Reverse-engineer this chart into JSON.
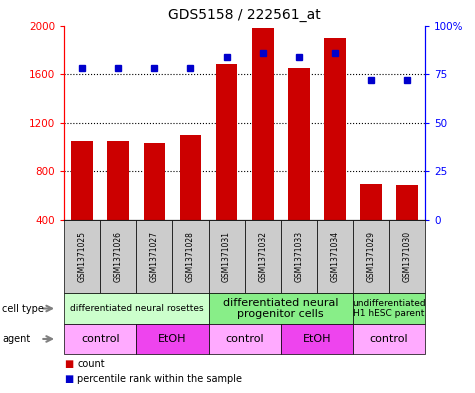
{
  "title": "GDS5158 / 222561_at",
  "samples": [
    "GSM1371025",
    "GSM1371026",
    "GSM1371027",
    "GSM1371028",
    "GSM1371031",
    "GSM1371032",
    "GSM1371033",
    "GSM1371034",
    "GSM1371029",
    "GSM1371030"
  ],
  "counts": [
    1050,
    1050,
    1030,
    1100,
    1680,
    1980,
    1650,
    1900,
    700,
    690
  ],
  "percentiles": [
    78,
    78,
    78,
    78,
    84,
    86,
    84,
    86,
    72,
    72
  ],
  "ylim_left": [
    400,
    2000
  ],
  "ylim_right": [
    0,
    100
  ],
  "yticks_left": [
    400,
    800,
    1200,
    1600,
    2000
  ],
  "yticks_right": [
    0,
    25,
    50,
    75,
    100
  ],
  "bar_color": "#cc0000",
  "dot_color": "#0000cc",
  "cell_type_groups": [
    {
      "label": "differentiated neural rosettes",
      "start": 0,
      "end": 4,
      "color": "#ccffcc",
      "fontsize": 6.5
    },
    {
      "label": "differentiated neural\nprogenitor cells",
      "start": 4,
      "end": 8,
      "color": "#88ee88",
      "fontsize": 8
    },
    {
      "label": "undifferentiated\nH1 hESC parent",
      "start": 8,
      "end": 10,
      "color": "#88ee88",
      "fontsize": 6.5
    }
  ],
  "agent_groups": [
    {
      "label": "control",
      "start": 0,
      "end": 2,
      "color": "#ffaaff"
    },
    {
      "label": "EtOH",
      "start": 2,
      "end": 4,
      "color": "#ee44ee"
    },
    {
      "label": "control",
      "start": 4,
      "end": 6,
      "color": "#ffaaff"
    },
    {
      "label": "EtOH",
      "start": 6,
      "end": 8,
      "color": "#ee44ee"
    },
    {
      "label": "control",
      "start": 8,
      "end": 10,
      "color": "#ffaaff"
    }
  ],
  "sample_bg_color": "#cccccc",
  "legend_count_label": "count",
  "legend_pct_label": "percentile rank within the sample",
  "cell_type_row_label": "cell type",
  "agent_row_label": "agent"
}
